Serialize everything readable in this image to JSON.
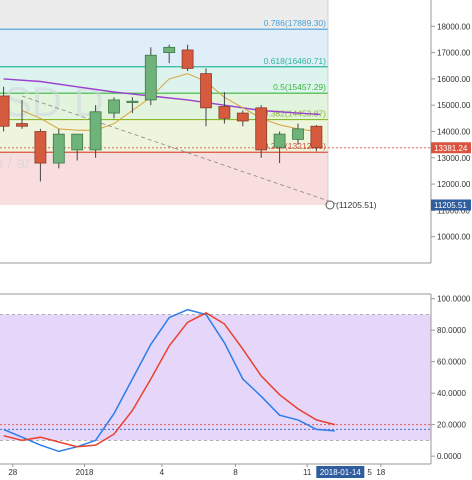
{
  "chart_data": [
    {
      "type": "candlestick",
      "watermark": "ISD D",
      "watermark_sub": "n / ar",
      "ylim": [
        9000,
        19000
      ],
      "y_ticks": [
        {
          "v": 10000,
          "label": "10000.00"
        },
        {
          "v": 11000,
          "label": "11000.00"
        },
        {
          "v": 12000,
          "label": "12000.00"
        },
        {
          "v": 13000,
          "label": "13000.00"
        },
        {
          "v": 14000,
          "label": "14000.00"
        },
        {
          "v": 15000,
          "label": "15000.00"
        },
        {
          "v": 16000,
          "label": "16000.00"
        },
        {
          "v": 17000,
          "label": "17000.00"
        },
        {
          "v": 18000,
          "label": "18000.00"
        }
      ],
      "price_labels": [
        {
          "v": 13381.24,
          "label": "13381.24",
          "color": "#d9533f"
        },
        {
          "v": 11205.51,
          "label": "11205.51",
          "color": "#2f5d9e"
        }
      ],
      "fib_levels": [
        {
          "v": 17889.3,
          "label": "0.786(17889.30)",
          "color": "#4aa0d8",
          "fill": "#dfeef8"
        },
        {
          "v": 16460.71,
          "label": "0.618(16460.71)",
          "color": "#2cb89a",
          "fill": "#ddf3ee"
        },
        {
          "v": 15457.29,
          "label": "0.5(15457.29)",
          "color": "#3bb53b",
          "fill": "#e2f4dd"
        },
        {
          "v": 14453.87,
          "label": "0.382(14453.87)",
          "color": "#8ab82c",
          "fill": "#eef5dd"
        },
        {
          "v": 13212.35,
          "label": "0.236(13212.35)",
          "color": "#d9533f",
          "fill": "#f8dede"
        },
        {
          "v": 11205.51,
          "label": "(11205.51)",
          "color": "#555555",
          "fill": null
        }
      ],
      "candles": [
        {
          "i": -1,
          "o": 15350,
          "h": 15700,
          "l": 14000,
          "c": 14200
        },
        {
          "i": 0,
          "o": 14300,
          "h": 15200,
          "l": 14100,
          "c": 14200
        },
        {
          "i": 1,
          "o": 14000,
          "h": 14100,
          "l": 12100,
          "c": 12800
        },
        {
          "i": 2,
          "o": 12800,
          "h": 14100,
          "l": 12600,
          "c": 13900
        },
        {
          "i": 3,
          "o": 13300,
          "h": 13900,
          "l": 12900,
          "c": 13900
        },
        {
          "i": 4,
          "o": 13300,
          "h": 15000,
          "l": 13000,
          "c": 14750
        },
        {
          "i": 5,
          "o": 14700,
          "h": 15300,
          "l": 14500,
          "c": 15200
        },
        {
          "i": 6,
          "o": 15100,
          "h": 15300,
          "l": 14700,
          "c": 15150
        },
        {
          "i": 7,
          "o": 15200,
          "h": 17200,
          "l": 15000,
          "c": 16900
        },
        {
          "i": 8,
          "o": 17000,
          "h": 17300,
          "l": 16600,
          "c": 17200
        },
        {
          "i": 9,
          "o": 17100,
          "h": 17300,
          "l": 16300,
          "c": 16400
        },
        {
          "i": 10,
          "o": 16200,
          "h": 16400,
          "l": 14200,
          "c": 14900
        },
        {
          "i": 11,
          "o": 14950,
          "h": 15500,
          "l": 14300,
          "c": 14500
        },
        {
          "i": 12,
          "o": 14700,
          "h": 14800,
          "l": 14200,
          "c": 14400
        },
        {
          "i": 13,
          "o": 14900,
          "h": 15000,
          "l": 13000,
          "c": 13300
        },
        {
          "i": 14,
          "o": 13400,
          "h": 14000,
          "l": 12800,
          "c": 13900
        },
        {
          "i": 15,
          "o": 13700,
          "h": 14300,
          "l": 13500,
          "c": 14100
        },
        {
          "i": 16,
          "o": 14200,
          "h": 14250,
          "l": 13250,
          "c": 13381.24
        }
      ],
      "ma_purple": [
        {
          "i": -1,
          "v": 16000
        },
        {
          "i": 1,
          "v": 15900
        },
        {
          "i": 3,
          "v": 15700
        },
        {
          "i": 5,
          "v": 15500
        },
        {
          "i": 7,
          "v": 15350
        },
        {
          "i": 9,
          "v": 15200
        },
        {
          "i": 11,
          "v": 15000
        },
        {
          "i": 13,
          "v": 14800
        },
        {
          "i": 15,
          "v": 14700
        },
        {
          "i": 16.2,
          "v": 14650
        }
      ],
      "ma_orange": [
        {
          "i": 0,
          "v": 14800
        },
        {
          "i": 1,
          "v": 14500
        },
        {
          "i": 2,
          "v": 14100
        },
        {
          "i": 3,
          "v": 14050
        },
        {
          "i": 4,
          "v": 14050
        },
        {
          "i": 5,
          "v": 14300
        },
        {
          "i": 6,
          "v": 14800
        },
        {
          "i": 7,
          "v": 15300
        },
        {
          "i": 8,
          "v": 16000
        },
        {
          "i": 9,
          "v": 16200
        },
        {
          "i": 10,
          "v": 15900
        },
        {
          "i": 11,
          "v": 15300
        },
        {
          "i": 12,
          "v": 14900
        },
        {
          "i": 13,
          "v": 14500
        },
        {
          "i": 14,
          "v": 14250
        },
        {
          "i": 15,
          "v": 14100
        },
        {
          "i": 16,
          "v": 14000
        }
      ],
      "dashed_trend": [
        {
          "i": 0,
          "v": 15350
        },
        {
          "i": 17.3,
          "v": 11205.51
        }
      ]
    },
    {
      "type": "line",
      "ylim": [
        -5,
        103
      ],
      "y_ticks": [
        {
          "v": 0,
          "label": "0.0000"
        },
        {
          "v": 20,
          "label": "20.0000"
        },
        {
          "v": 40,
          "label": "40.0000"
        },
        {
          "v": 60,
          "label": "60.0000"
        },
        {
          "v": 80,
          "label": "80.0000"
        },
        {
          "v": 100,
          "label": "100.0000"
        }
      ],
      "band": [
        10,
        90
      ],
      "band_color": "#e6d7fa",
      "hlines": [
        {
          "v": 20,
          "color": "#d9533f"
        },
        {
          "v": 17,
          "color": "#4a6fd0"
        }
      ],
      "series": [
        {
          "color": "#2b7de9",
          "points": [
            {
              "i": -1,
              "v": 17
            },
            {
              "i": 0,
              "v": 12
            },
            {
              "i": 1,
              "v": 7
            },
            {
              "i": 2,
              "v": 3
            },
            {
              "i": 3,
              "v": 6
            },
            {
              "i": 4,
              "v": 10
            },
            {
              "i": 5,
              "v": 27
            },
            {
              "i": 6,
              "v": 49
            },
            {
              "i": 7,
              "v": 71
            },
            {
              "i": 8,
              "v": 88
            },
            {
              "i": 9,
              "v": 93
            },
            {
              "i": 10,
              "v": 90
            },
            {
              "i": 11,
              "v": 72
            },
            {
              "i": 12,
              "v": 49
            },
            {
              "i": 13,
              "v": 38
            },
            {
              "i": 14,
              "v": 26
            },
            {
              "i": 15,
              "v": 23
            },
            {
              "i": 16,
              "v": 17
            },
            {
              "i": 17,
              "v": 16
            }
          ]
        },
        {
          "color": "#e8412d",
          "points": [
            {
              "i": -1,
              "v": 13
            },
            {
              "i": 0,
              "v": 10
            },
            {
              "i": 1,
              "v": 12
            },
            {
              "i": 2,
              "v": 9
            },
            {
              "i": 3,
              "v": 6
            },
            {
              "i": 4,
              "v": 7
            },
            {
              "i": 5,
              "v": 14
            },
            {
              "i": 6,
              "v": 29
            },
            {
              "i": 7,
              "v": 49
            },
            {
              "i": 8,
              "v": 70
            },
            {
              "i": 9,
              "v": 85
            },
            {
              "i": 10,
              "v": 91
            },
            {
              "i": 11,
              "v": 84
            },
            {
              "i": 12,
              "v": 68
            },
            {
              "i": 13,
              "v": 51
            },
            {
              "i": 14,
              "v": 39
            },
            {
              "i": 15,
              "v": 30
            },
            {
              "i": 16,
              "v": 23
            },
            {
              "i": 17,
              "v": 20
            }
          ]
        }
      ]
    }
  ],
  "x_axis": {
    "ticks": [
      {
        "i": -0.5,
        "label": "28"
      },
      {
        "i": 3.4,
        "label": "2018"
      },
      {
        "i": 7.6,
        "label": "4"
      },
      {
        "i": 11.6,
        "label": "8"
      },
      {
        "i": 15.5,
        "label": "11"
      },
      {
        "i": 19.5,
        "label": "18"
      }
    ],
    "highlight": {
      "i": 17.3,
      "label": "2018-01-14",
      "tail": "5"
    }
  }
}
